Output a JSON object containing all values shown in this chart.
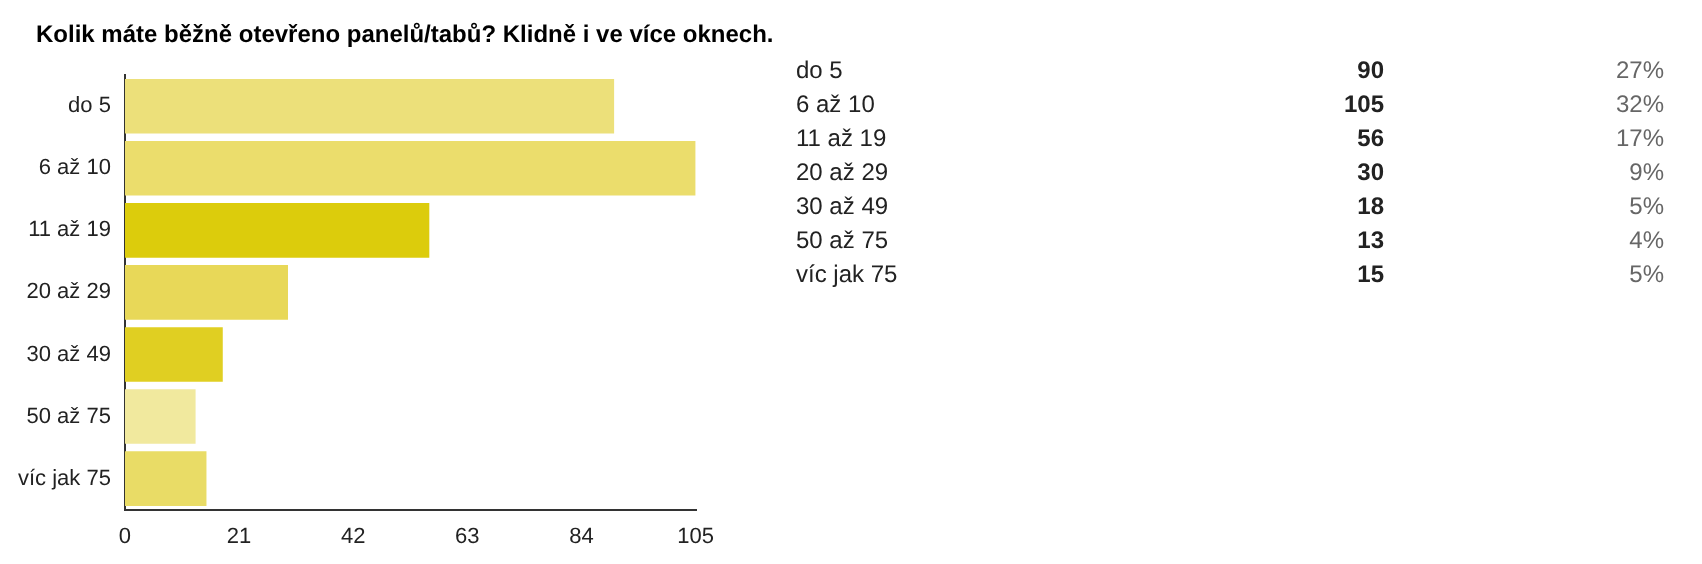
{
  "chart_data": {
    "type": "bar",
    "orientation": "horizontal",
    "title": "Kolik máte běžně otevřeno panelů/tabů? Klidně i ve více oknech.",
    "categories": [
      "do 5",
      "6 až 10",
      "11 až 19",
      "20 až 29",
      "30 až 49",
      "50 až 75",
      "víc jak 75"
    ],
    "values": [
      90,
      105,
      56,
      30,
      18,
      13,
      15
    ],
    "colors": [
      "#ece07a",
      "#ebdd6c",
      "#dccc0c",
      "#e8d858",
      "#e0cf22",
      "#f1e99e",
      "#e9dc66"
    ],
    "xlim": [
      0,
      105
    ],
    "xticks": [
      0,
      21,
      42,
      63,
      84,
      105
    ],
    "grid": false,
    "legend": false,
    "annotations": [
      "90",
      "27%",
      "105",
      "32%",
      "56",
      "17%",
      "30",
      "9%",
      "18",
      "5%",
      "13",
      "4%",
      "15",
      "5%"
    ]
  }
}
